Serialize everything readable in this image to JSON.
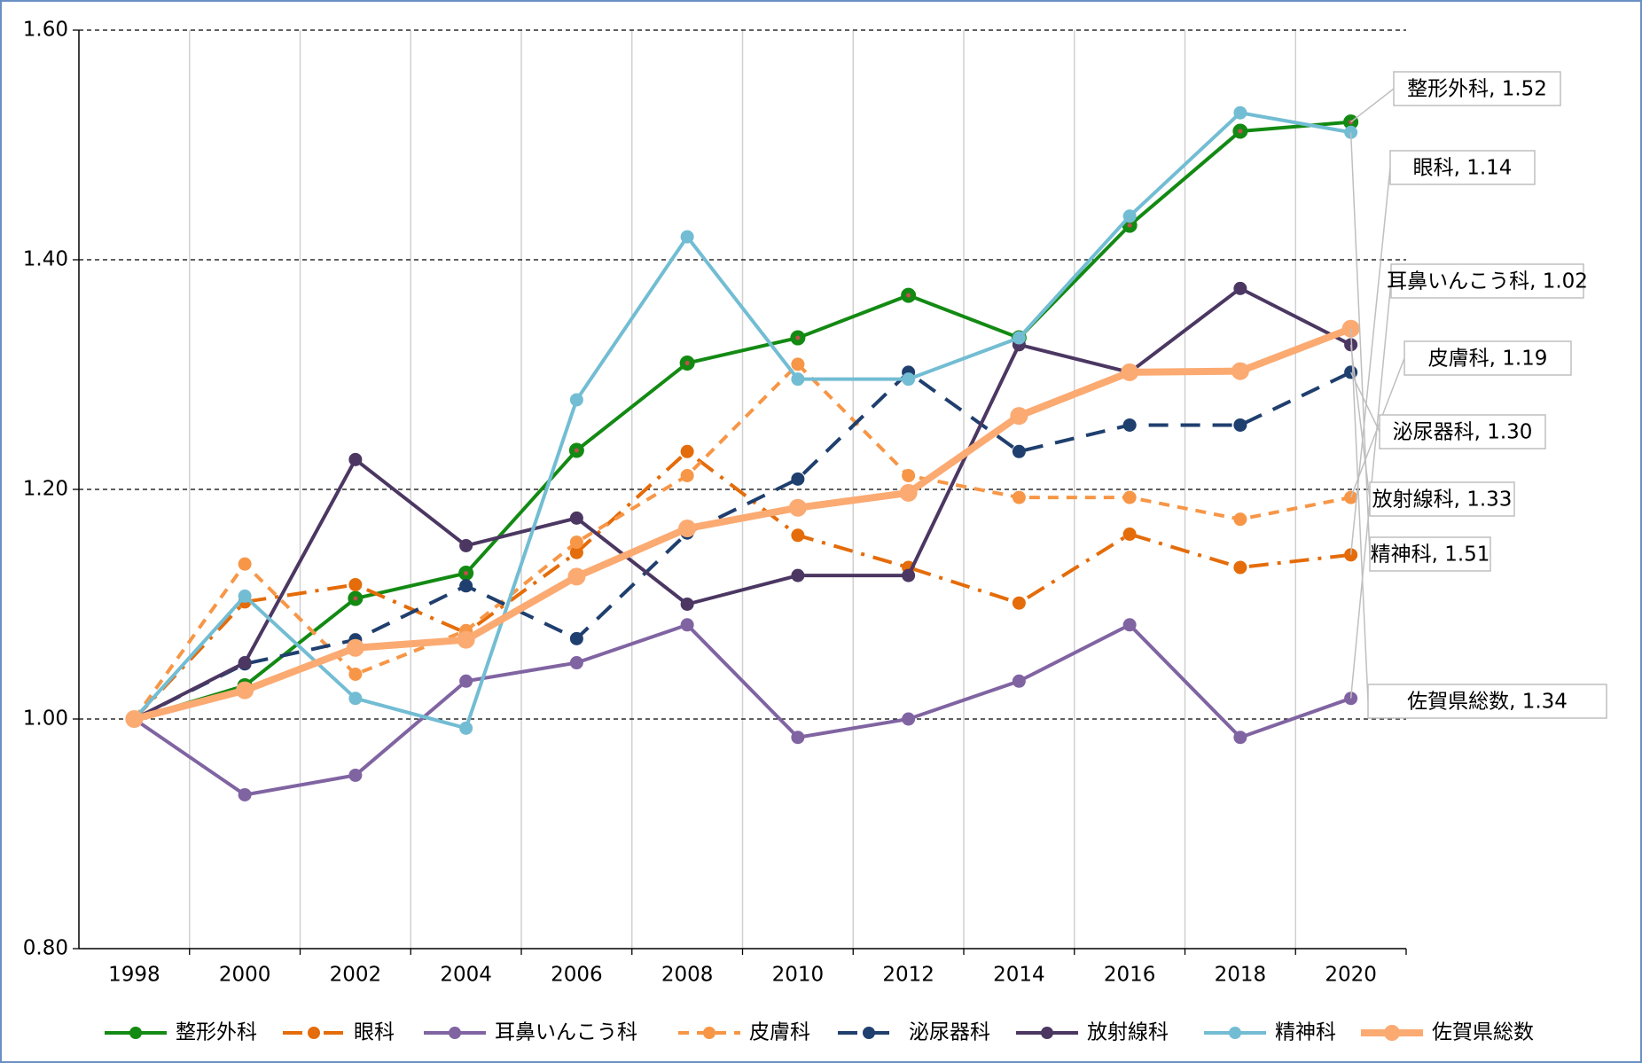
{
  "chart_data": {
    "type": "line",
    "categories": [
      "1998",
      "2000",
      "2002",
      "2004",
      "2006",
      "2008",
      "2010",
      "2012",
      "2014",
      "2016",
      "2018",
      "2020"
    ],
    "ylim": [
      0.8,
      1.6
    ],
    "yticks": [
      {
        "value": 0.8,
        "label": "0.80"
      },
      {
        "value": 1.0,
        "label": "1.00"
      },
      {
        "value": 1.2,
        "label": "1.20"
      },
      {
        "value": 1.4,
        "label": "1.40"
      },
      {
        "value": 1.6,
        "label": "1.60"
      }
    ],
    "grid": true,
    "legend": "bottom",
    "series": [
      {
        "name": "整形外科",
        "color": "#138a13",
        "dash": "solid",
        "width": 4,
        "values": [
          1.0,
          1.029,
          1.105,
          1.127,
          1.234,
          1.31,
          1.332,
          1.369,
          1.332,
          1.43,
          1.512,
          1.52
        ],
        "end_label": "整形外科, 1.52"
      },
      {
        "name": "眼科",
        "color": "#e46c0a",
        "dash": "dashdot",
        "width": 4,
        "values": [
          1.0,
          1.102,
          1.117,
          1.075,
          1.145,
          1.233,
          1.16,
          1.132,
          1.101,
          1.161,
          1.132,
          1.143
        ],
        "end_label": "眼科, 1.14"
      },
      {
        "name": "耳鼻いんこう科",
        "color": "#8064a2",
        "dash": "solid",
        "width": 4,
        "values": [
          1.0,
          0.934,
          0.951,
          1.033,
          1.049,
          1.082,
          0.984,
          1.0,
          1.033,
          1.082,
          0.984,
          1.018
        ],
        "end_label": "耳鼻いんこう科, 1.02"
      },
      {
        "name": "皮膚科",
        "color": "#f79646",
        "dash": "dash",
        "width": 4,
        "values": [
          1.0,
          1.135,
          1.039,
          1.077,
          1.154,
          1.212,
          1.309,
          1.212,
          1.193,
          1.193,
          1.174,
          1.193
        ],
        "end_label": "皮膚科, 1.19"
      },
      {
        "name": "泌尿器科",
        "color": "#1f3f6e",
        "dash": "longdash",
        "width": 4,
        "values": [
          1.0,
          1.048,
          1.069,
          1.116,
          1.07,
          1.162,
          1.209,
          1.302,
          1.233,
          1.256,
          1.256,
          1.302
        ],
        "end_label": "泌尿器科, 1.30"
      },
      {
        "name": "放射線科",
        "color": "#4b3762",
        "dash": "solid",
        "width": 4,
        "values": [
          1.0,
          1.049,
          1.226,
          1.151,
          1.175,
          1.1,
          1.125,
          1.125,
          1.326,
          1.302,
          1.375,
          1.326
        ],
        "end_label": "放射線科, 1.33"
      },
      {
        "name": "精神科",
        "color": "#72bdd3",
        "dash": "solid",
        "width": 4,
        "values": [
          1.0,
          1.107,
          1.018,
          0.992,
          1.278,
          1.42,
          1.296,
          1.296,
          1.332,
          1.438,
          1.528,
          1.511
        ],
        "end_label": "精神科, 1.51"
      },
      {
        "name": "佐賀県総数",
        "color": "#fbaa72",
        "dash": "solid",
        "width": 8,
        "values": [
          1.0,
          1.025,
          1.062,
          1.069,
          1.124,
          1.166,
          1.184,
          1.197,
          1.264,
          1.302,
          1.303,
          1.34
        ],
        "end_label": "佐賀県総数, 1.34"
      }
    ]
  }
}
